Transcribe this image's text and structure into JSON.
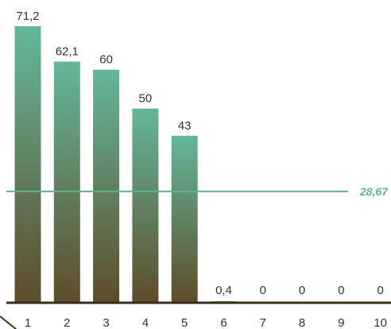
{
  "chart_data": {
    "type": "bar",
    "categories": [
      "1",
      "2",
      "3",
      "4",
      "5",
      "6",
      "7",
      "8",
      "9",
      "10"
    ],
    "values": [
      71.2,
      62.1,
      60,
      50,
      43,
      0.4,
      0,
      0,
      0,
      0
    ],
    "value_labels": [
      "71,2",
      "62,1",
      "60",
      "50",
      "43",
      "0,4",
      "0",
      "0",
      "0",
      "0"
    ],
    "ylim": [
      0,
      74
    ],
    "grid": false,
    "average_line": {
      "value": 28.67,
      "label": "28,67"
    },
    "colors": {
      "bar_top": "#63b89a",
      "bar_bottom": "#5e4c2a",
      "average": "#5fb394",
      "axis": "#3b2e1c"
    }
  }
}
